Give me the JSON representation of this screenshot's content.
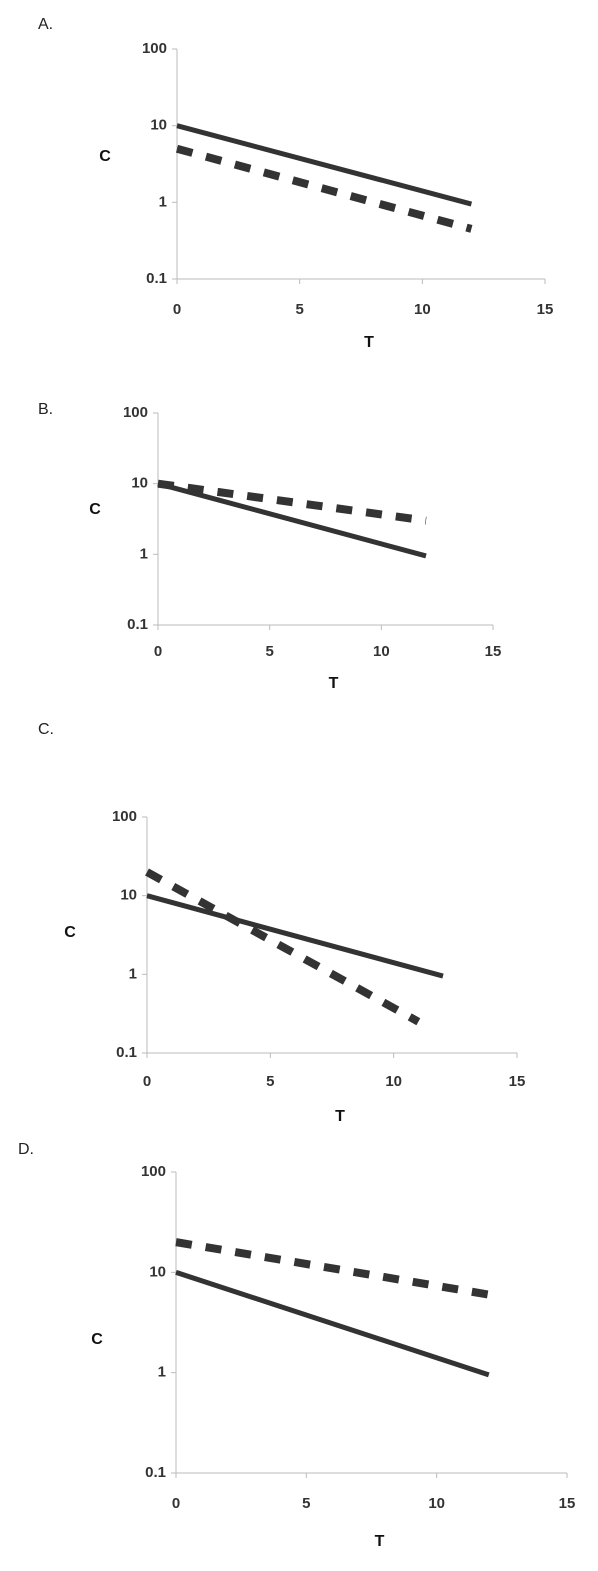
{
  "chart_data": [
    {
      "type": "line",
      "panel_label": "A.",
      "x_label": "T",
      "y_label": "C",
      "y_log": true,
      "xlim": [
        0,
        15
      ],
      "xticks": [
        0,
        5,
        10,
        15
      ],
      "ylim": [
        0.1,
        100
      ],
      "yticks": [
        0.1,
        1,
        10,
        100
      ],
      "series": [
        {
          "color": "#333333",
          "dashed": false,
          "x": [
            0,
            12
          ],
          "values": [
            10,
            0.95
          ]
        },
        {
          "color": "#333333",
          "dashed": true,
          "x": [
            0,
            12
          ],
          "values": [
            5,
            0.45
          ]
        }
      ]
    },
    {
      "type": "line",
      "panel_label": "B.",
      "x_label": "T",
      "y_label": "C",
      "y_log": true,
      "xlim": [
        0,
        15
      ],
      "xticks": [
        0,
        5,
        10,
        15
      ],
      "ylim": [
        0.1,
        100
      ],
      "yticks": [
        0.1,
        1,
        10,
        100
      ],
      "series": [
        {
          "color": "#333333",
          "dashed": false,
          "x": [
            0,
            12
          ],
          "values": [
            10,
            0.95
          ]
        },
        {
          "color": "#333333",
          "dashed": true,
          "x": [
            0,
            12
          ],
          "values": [
            10,
            3
          ]
        }
      ]
    },
    {
      "type": "line",
      "panel_label": "C.",
      "x_label": "T",
      "y_label": "C",
      "y_log": true,
      "xlim": [
        0,
        15
      ],
      "xticks": [
        0,
        5,
        10,
        15
      ],
      "ylim": [
        0.1,
        100
      ],
      "yticks": [
        0.1,
        1,
        10,
        100
      ],
      "series": [
        {
          "color": "#333333",
          "dashed": false,
          "x": [
            0,
            12
          ],
          "values": [
            10,
            0.95
          ]
        },
        {
          "color": "#333333",
          "dashed": true,
          "x": [
            0,
            11
          ],
          "values": [
            20,
            0.25
          ]
        }
      ]
    },
    {
      "type": "line",
      "panel_label": "D.",
      "x_label": "T",
      "y_label": "C",
      "y_log": true,
      "xlim": [
        0,
        15
      ],
      "xticks": [
        0,
        5,
        10,
        15
      ],
      "ylim": [
        0.1,
        100
      ],
      "yticks": [
        0.1,
        1,
        10,
        100
      ],
      "series": [
        {
          "color": "#333333",
          "dashed": false,
          "x": [
            0,
            12
          ],
          "values": [
            10,
            0.95
          ]
        },
        {
          "color": "#333333",
          "dashed": true,
          "x": [
            0,
            12
          ],
          "values": [
            20,
            6
          ]
        }
      ]
    }
  ]
}
